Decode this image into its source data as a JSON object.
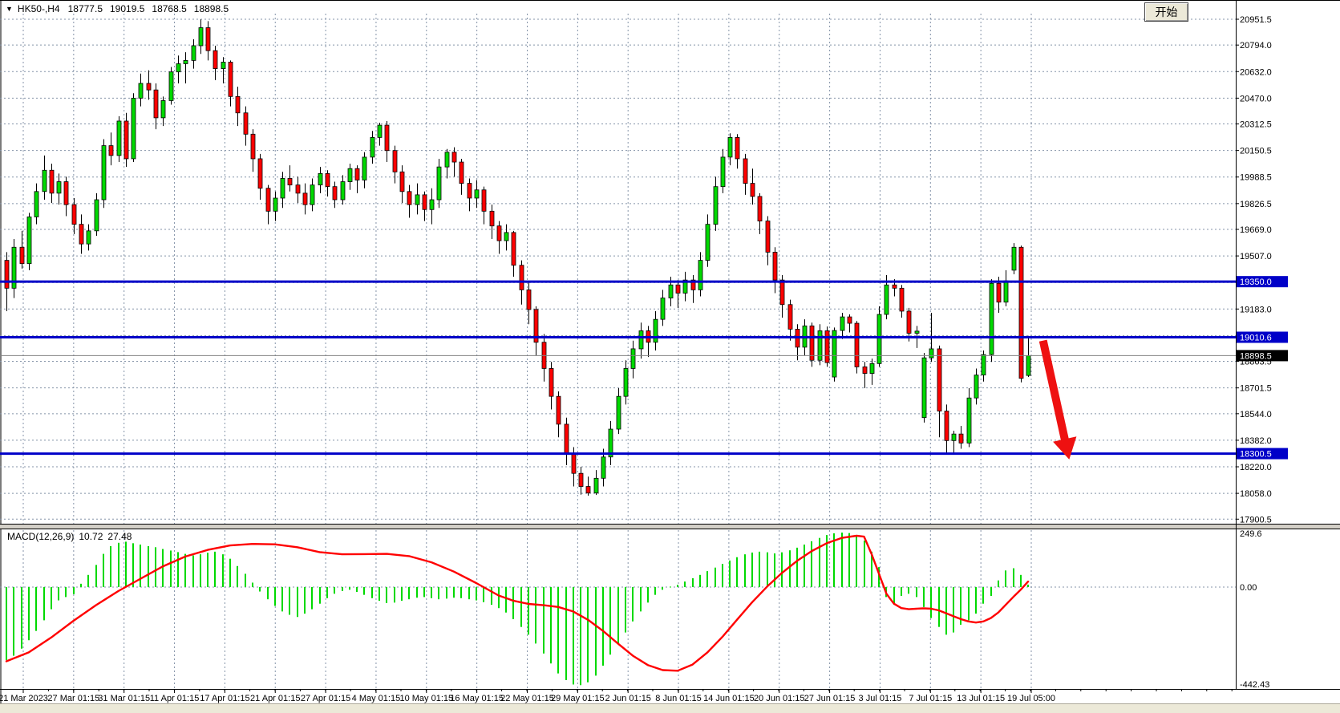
{
  "window": {
    "start_button_label": "开始"
  },
  "symbol_bar": {
    "collapse_icon": "▼",
    "symbol": "HK50-,H4",
    "open": "18777.5",
    "high": "19019.5",
    "low": "18768.5",
    "close": "18898.5"
  },
  "colors": {
    "candle_up": "#00D900",
    "candle_down": "#FF0000",
    "candle_border": "#000000",
    "hline_blue": "#0000C8",
    "current_price_line": "#808080",
    "grid": "#8493A8",
    "macd_histogram": "#00D900",
    "macd_signal": "#FF0000",
    "arrow": "#EE1111",
    "axis_text": "#000000"
  },
  "chart_data": {
    "type": "candlestick_with_macd",
    "title": "HK50-,H4",
    "price_axis": {
      "tick_values": [
        20951.5,
        20794.0,
        20632.0,
        20470.0,
        20312.5,
        20150.5,
        19988.5,
        19826.5,
        19669.0,
        19507.0,
        19183.0,
        18863.5,
        18701.5,
        18544.0,
        18382.0,
        18220.0,
        18058.0,
        17900.5
      ],
      "grid_only_values": [
        19345.0,
        19021.0
      ],
      "range": [
        17880,
        21065
      ]
    },
    "x_axis": {
      "labels": [
        "21 Mar 2023",
        "27 Mar 01:15",
        "31 Mar 01:15",
        "11 Apr 01:15",
        "17 Apr 01:15",
        "21 Apr 01:15",
        "27 Apr 01:15",
        "4 May 01:15",
        "10 May 01:15",
        "16 May 01:15",
        "22 May 01:15",
        "29 May 01:15",
        "2 Jun 01:15",
        "8 Jun 01:15",
        "14 Jun 01:15",
        "20 Jun 01:15",
        "27 Jun 01:15",
        "3 Jul 01:15",
        "7 Jul 01:15",
        "13 Jul 01:15",
        "19 Jul 05:00"
      ]
    },
    "horizontal_lines": [
      {
        "price": 19350.0,
        "label": "19350.0",
        "type": "resistance"
      },
      {
        "price": 19010.6,
        "label": "19010.6",
        "type": "support-broken"
      },
      {
        "price": 18300.5,
        "label": "18300.5",
        "type": "support"
      }
    ],
    "current_price": {
      "value": 18898.5,
      "label": "18898.5"
    },
    "arrow_annotation": {
      "from_bar": 139,
      "from_price": 18990,
      "to_bar": 142,
      "to_price": 18370,
      "meaning": "projected decline toward 18300.5"
    },
    "candles_ohlc": [
      [
        19480,
        19530,
        19170,
        19310
      ],
      [
        19310,
        19610,
        19250,
        19560
      ],
      [
        19560,
        19660,
        19430,
        19460
      ],
      [
        19460,
        19770,
        19420,
        19745
      ],
      [
        19745,
        19950,
        19700,
        19900
      ],
      [
        19900,
        20120,
        19850,
        20030
      ],
      [
        20030,
        20070,
        19830,
        19890
      ],
      [
        19890,
        20010,
        19820,
        19960
      ],
      [
        19960,
        19990,
        19750,
        19820
      ],
      [
        19820,
        19860,
        19640,
        19700
      ],
      [
        19700,
        19760,
        19520,
        19580
      ],
      [
        19580,
        19700,
        19540,
        19660
      ],
      [
        19660,
        19890,
        19630,
        19850
      ],
      [
        19850,
        20220,
        19800,
        20180
      ],
      [
        20180,
        20260,
        20060,
        20120
      ],
      [
        20120,
        20360,
        20080,
        20330
      ],
      [
        20330,
        20380,
        20050,
        20100
      ],
      [
        20100,
        20500,
        20080,
        20470
      ],
      [
        20470,
        20620,
        20420,
        20560
      ],
      [
        20560,
        20640,
        20460,
        20520
      ],
      [
        20520,
        20560,
        20280,
        20350
      ],
      [
        20350,
        20480,
        20300,
        20455
      ],
      [
        20455,
        20660,
        20430,
        20630
      ],
      [
        20630,
        20730,
        20560,
        20680
      ],
      [
        20680,
        20750,
        20560,
        20700
      ],
      [
        20700,
        20830,
        20650,
        20790
      ],
      [
        20790,
        20951,
        20740,
        20900
      ],
      [
        20900,
        20940,
        20700,
        20760
      ],
      [
        20760,
        20790,
        20580,
        20650
      ],
      [
        20650,
        20720,
        20560,
        20690
      ],
      [
        20690,
        20700,
        20420,
        20480
      ],
      [
        20480,
        20540,
        20300,
        20380
      ],
      [
        20380,
        20420,
        20180,
        20250
      ],
      [
        20250,
        20280,
        20020,
        20100
      ],
      [
        20100,
        20130,
        19850,
        19920
      ],
      [
        19920,
        19940,
        19700,
        19780
      ],
      [
        19780,
        19900,
        19720,
        19860
      ],
      [
        19860,
        20020,
        19800,
        19980
      ],
      [
        19980,
        20060,
        19900,
        19940
      ],
      [
        19940,
        19990,
        19830,
        19890
      ],
      [
        19890,
        19950,
        19760,
        19820
      ],
      [
        19820,
        19980,
        19780,
        19940
      ],
      [
        19940,
        20050,
        19890,
        20010
      ],
      [
        20010,
        20030,
        19870,
        19930
      ],
      [
        19930,
        19960,
        19800,
        19850
      ],
      [
        19850,
        20000,
        19820,
        19960
      ],
      [
        19960,
        20070,
        19910,
        20040
      ],
      [
        20040,
        20060,
        19890,
        19970
      ],
      [
        19970,
        20140,
        19920,
        20110
      ],
      [
        20110,
        20270,
        20070,
        20230
      ],
      [
        20230,
        20320,
        20180,
        20305
      ],
      [
        20305,
        20330,
        20080,
        20150
      ],
      [
        20150,
        20180,
        19950,
        20020
      ],
      [
        20020,
        20060,
        19830,
        19900
      ],
      [
        19900,
        19940,
        19740,
        19820
      ],
      [
        19820,
        19950,
        19760,
        19880
      ],
      [
        19880,
        19900,
        19720,
        19790
      ],
      [
        19790,
        19920,
        19700,
        19850
      ],
      [
        19850,
        20100,
        19800,
        20050
      ],
      [
        20050,
        20160,
        19980,
        20140
      ],
      [
        20140,
        20170,
        19990,
        20080
      ],
      [
        20080,
        20100,
        19880,
        19950
      ],
      [
        19950,
        19980,
        19780,
        19860
      ],
      [
        19860,
        19970,
        19800,
        19910
      ],
      [
        19910,
        19930,
        19700,
        19780
      ],
      [
        19780,
        19820,
        19610,
        19690
      ],
      [
        19690,
        19720,
        19520,
        19600
      ],
      [
        19600,
        19700,
        19540,
        19650
      ],
      [
        19650,
        19660,
        19380,
        19450
      ],
      [
        19450,
        19480,
        19210,
        19300
      ],
      [
        19300,
        19350,
        19090,
        19180
      ],
      [
        19180,
        19200,
        18900,
        18980
      ],
      [
        18980,
        19030,
        18740,
        18820
      ],
      [
        18820,
        18860,
        18570,
        18650
      ],
      [
        18650,
        18680,
        18400,
        18480
      ],
      [
        18480,
        18520,
        18230,
        18300
      ],
      [
        18300,
        18340,
        18100,
        18180
      ],
      [
        18180,
        18220,
        18050,
        18100
      ],
      [
        18100,
        18160,
        18044,
        18060
      ],
      [
        18060,
        18200,
        18048,
        18150
      ],
      [
        18150,
        18330,
        18100,
        18280
      ],
      [
        18280,
        18500,
        18230,
        18450
      ],
      [
        18450,
        18700,
        18420,
        18650
      ],
      [
        18650,
        18870,
        18600,
        18820
      ],
      [
        18820,
        18990,
        18760,
        18940
      ],
      [
        18940,
        19100,
        18880,
        19050
      ],
      [
        19050,
        19080,
        18890,
        18980
      ],
      [
        18980,
        19170,
        18930,
        19120
      ],
      [
        19120,
        19300,
        19080,
        19250
      ],
      [
        19250,
        19380,
        19200,
        19330
      ],
      [
        19330,
        19360,
        19190,
        19280
      ],
      [
        19280,
        19410,
        19230,
        19360
      ],
      [
        19360,
        19390,
        19220,
        19300
      ],
      [
        19300,
        19530,
        19260,
        19480
      ],
      [
        19480,
        19760,
        19440,
        19700
      ],
      [
        19700,
        19990,
        19660,
        19930
      ],
      [
        19930,
        20160,
        19890,
        20110
      ],
      [
        20110,
        20255,
        20060,
        20230
      ],
      [
        20230,
        20250,
        20040,
        20100
      ],
      [
        20100,
        20130,
        19880,
        19950
      ],
      [
        19950,
        20040,
        19820,
        19870
      ],
      [
        19870,
        19890,
        19640,
        19720
      ],
      [
        19720,
        19750,
        19450,
        19530
      ],
      [
        19530,
        19560,
        19280,
        19360
      ],
      [
        19360,
        19390,
        19130,
        19210
      ],
      [
        19210,
        19240,
        18990,
        19060
      ],
      [
        19060,
        19090,
        18870,
        18950
      ],
      [
        18950,
        19120,
        18900,
        19080
      ],
      [
        19080,
        19100,
        18830,
        18870
      ],
      [
        18870,
        19090,
        18840,
        19050
      ],
      [
        19050,
        19076,
        18830,
        18856
      ],
      [
        18768,
        19070,
        18740,
        19052
      ],
      [
        19052,
        19160,
        19000,
        19135
      ],
      [
        19135,
        19150,
        19040,
        19096
      ],
      [
        19096,
        19110,
        18790,
        18830
      ],
      [
        18830,
        18860,
        18700,
        18790
      ],
      [
        18790,
        18880,
        18720,
        18850
      ],
      [
        18850,
        19200,
        18830,
        19150
      ],
      [
        19150,
        19390,
        19120,
        19330
      ],
      [
        19330,
        19365,
        19260,
        19310
      ],
      [
        19310,
        19330,
        19130,
        19170
      ],
      [
        19170,
        19190,
        18985,
        19035
      ],
      [
        19035,
        19080,
        18945,
        19048
      ],
      [
        18520,
        18915,
        18490,
        18885
      ],
      [
        18885,
        19160,
        18860,
        18940
      ],
      [
        18940,
        18960,
        18400,
        18560
      ],
      [
        18560,
        18600,
        18305,
        18380
      ],
      [
        18380,
        18440,
        18302,
        18420
      ],
      [
        18420,
        18470,
        18330,
        18365
      ],
      [
        18365,
        18700,
        18340,
        18640
      ],
      [
        18640,
        18820,
        18600,
        18780
      ],
      [
        18780,
        18930,
        18740,
        18905
      ],
      [
        18905,
        19365,
        18860,
        19340
      ],
      [
        19340,
        19380,
        19160,
        19225
      ],
      [
        19225,
        19420,
        19200,
        19355
      ],
      [
        19420,
        19585,
        19395,
        19560
      ],
      [
        19560,
        19570,
        18735,
        18760
      ],
      [
        18777.5,
        19019.5,
        18768.5,
        18898.5
      ]
    ],
    "macd": {
      "label": "MACD(12,26,9)",
      "value_main": "10.72",
      "value_signal": "27.48",
      "axis_labels": [
        "249.6",
        "0.00",
        "-442.43"
      ],
      "axis_values": [
        249.6,
        0,
        -442.43
      ],
      "histogram": [
        -330,
        -310,
        -278,
        -240,
        -198,
        -150,
        -100,
        -60,
        -45,
        -32,
        15,
        55,
        100,
        150,
        185,
        200,
        205,
        198,
        192,
        185,
        180,
        172,
        165,
        158,
        150,
        143,
        148,
        155,
        160,
        148,
        128,
        95,
        60,
        20,
        -20,
        -55,
        -85,
        -110,
        -125,
        -135,
        -120,
        -100,
        -75,
        -50,
        -30,
        -18,
        -12,
        -22,
        -35,
        -50,
        -62,
        -72,
        -70,
        -62,
        -55,
        -48,
        -45,
        -50,
        -55,
        -52,
        -48,
        -50,
        -55,
        -60,
        -68,
        -80,
        -95,
        -115,
        -145,
        -180,
        -215,
        -255,
        -300,
        -345,
        -390,
        -420,
        -440,
        -443,
        -430,
        -400,
        -355,
        -305,
        -255,
        -205,
        -155,
        -110,
        -70,
        -35,
        -12,
        2,
        10,
        25,
        40,
        55,
        72,
        88,
        105,
        120,
        135,
        148,
        156,
        160,
        157,
        152,
        157,
        166,
        178,
        192,
        207,
        222,
        235,
        243,
        246,
        244,
        235,
        210,
        160,
        90,
        -45,
        -80,
        -40,
        -30,
        -45,
        -90,
        -140,
        -180,
        -215,
        -205,
        -170,
        -150,
        -120,
        -75,
        -40,
        30,
        75,
        85,
        55,
        11
      ],
      "signal_points": [
        [
          0,
          -335
        ],
        [
          3,
          -295
        ],
        [
          6,
          -228
        ],
        [
          9,
          -152
        ],
        [
          12,
          -82
        ],
        [
          15,
          -18
        ],
        [
          18,
          38
        ],
        [
          21,
          94
        ],
        [
          24,
          138
        ],
        [
          27,
          168
        ],
        [
          30,
          188
        ],
        [
          33,
          195
        ],
        [
          36,
          193
        ],
        [
          39,
          180
        ],
        [
          42,
          158
        ],
        [
          45,
          148
        ],
        [
          48,
          149
        ],
        [
          51,
          150
        ],
        [
          54,
          140
        ],
        [
          57,
          112
        ],
        [
          60,
          70
        ],
        [
          63,
          18
        ],
        [
          66,
          -38
        ],
        [
          68,
          -62
        ],
        [
          70,
          -76
        ],
        [
          72,
          -82
        ],
        [
          74,
          -90
        ],
        [
          76,
          -110
        ],
        [
          78,
          -148
        ],
        [
          80,
          -198
        ],
        [
          82,
          -255
        ],
        [
          84,
          -310
        ],
        [
          86,
          -352
        ],
        [
          88,
          -375
        ],
        [
          90,
          -378
        ],
        [
          92,
          -350
        ],
        [
          94,
          -295
        ],
        [
          96,
          -225
        ],
        [
          98,
          -146
        ],
        [
          100,
          -68
        ],
        [
          102,
          2
        ],
        [
          104,
          64
        ],
        [
          106,
          118
        ],
        [
          108,
          163
        ],
        [
          110,
          198
        ],
        [
          112,
          222
        ],
        [
          114,
          232
        ],
        [
          115,
          228
        ],
        [
          116,
          150
        ],
        [
          117,
          60
        ],
        [
          118,
          -30
        ],
        [
          119,
          -75
        ],
        [
          120,
          -95
        ],
        [
          121,
          -100
        ],
        [
          122,
          -98
        ],
        [
          123,
          -96
        ],
        [
          124,
          -98
        ],
        [
          125,
          -105
        ],
        [
          126,
          -118
        ],
        [
          127,
          -132
        ],
        [
          128,
          -145
        ],
        [
          129,
          -155
        ],
        [
          130,
          -160
        ],
        [
          131,
          -155
        ],
        [
          132,
          -140
        ],
        [
          133,
          -115
        ],
        [
          134,
          -80
        ],
        [
          135,
          -45
        ],
        [
          136,
          -12
        ],
        [
          137,
          25
        ]
      ]
    }
  }
}
